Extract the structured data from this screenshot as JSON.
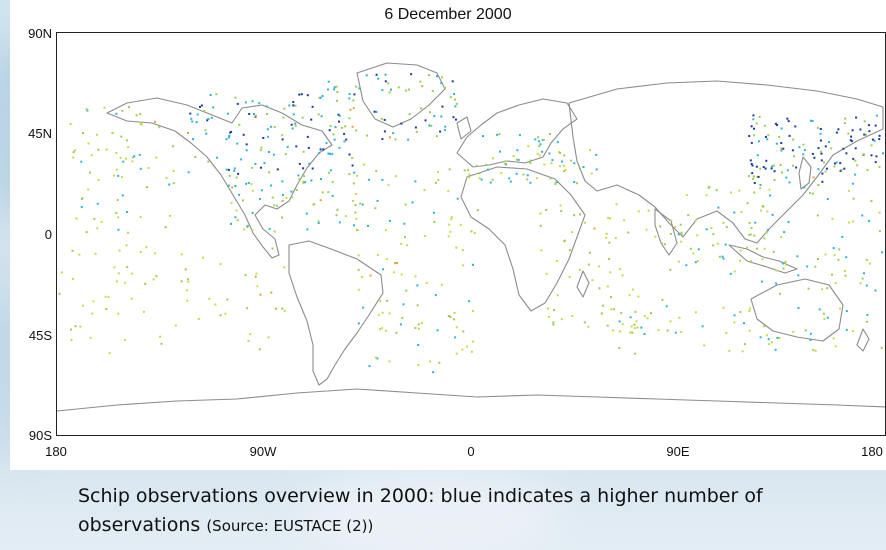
{
  "title": "6 December 2000",
  "axes": {
    "y_labels": [
      "90N",
      "45N",
      "0",
      "45S",
      "90S"
    ],
    "x_labels": [
      "180",
      "90W",
      "0",
      "90E",
      "180"
    ]
  },
  "caption": {
    "main": "Schip observations overview in 2000: blue indicates a higher number of observations",
    "source": "(Source: EUSTACE (2))"
  },
  "colors": {
    "coastline": "#8c8c8c",
    "low": "#c7d94a",
    "mid": "#9ccd52",
    "high": "#2bb3d6",
    "very_high": "#1b3b9e",
    "outlier": "#e8a33a"
  },
  "chart_data": {
    "type": "scatter",
    "xlim": [
      -180,
      180
    ],
    "ylim": [
      -90,
      90
    ],
    "x_unit": "longitude",
    "y_unit": "latitude"
  }
}
